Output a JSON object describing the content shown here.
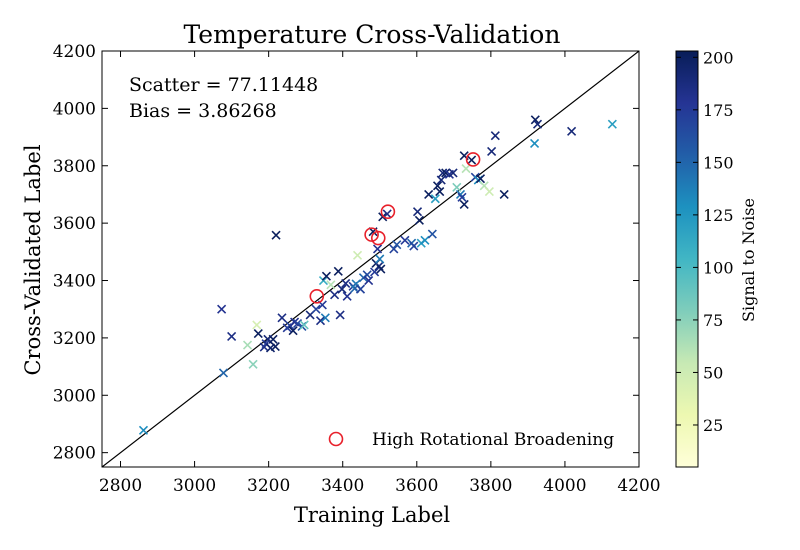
{
  "chart_data": {
    "type": "scatter",
    "title": "Temperature Cross-Validation",
    "xlabel": "Training Label",
    "ylabel": "Cross-Validated Label",
    "xlim": [
      2750,
      4200
    ],
    "ylim": [
      2750,
      4200
    ],
    "xticks": [
      2800,
      3000,
      3200,
      3400,
      3600,
      3800,
      4000,
      4200
    ],
    "yticks": [
      2800,
      3000,
      3200,
      3400,
      3600,
      3800,
      4000,
      4200
    ],
    "grid": false,
    "annotations": [
      "Scatter = 77.11448",
      "Bias = 3.86268"
    ],
    "reference_line": "y = x",
    "legend": {
      "position": "bottom-right",
      "entries": [
        "High Rotational Broadening"
      ]
    },
    "colorbar": {
      "label": "Signal to Noise",
      "range": [
        5,
        203
      ],
      "ticks": [
        25,
        50,
        75,
        100,
        125,
        150,
        175,
        200
      ],
      "colormap": "YlGnBu"
    },
    "colors": {
      "highlight": "#e8202a",
      "line": "#000000"
    },
    "points": [
      [
        2862,
        2878,
        130
      ],
      [
        3073,
        3300,
        180
      ],
      [
        3078,
        3078,
        150
      ],
      [
        3100,
        3205,
        185
      ],
      [
        3143,
        3175,
        65
      ],
      [
        3158,
        3108,
        75
      ],
      [
        3168,
        3245,
        45
      ],
      [
        3172,
        3215,
        200
      ],
      [
        3188,
        3168,
        185
      ],
      [
        3193,
        3180,
        175
      ],
      [
        3198,
        3195,
        190
      ],
      [
        3205,
        3165,
        195
      ],
      [
        3212,
        3195,
        200
      ],
      [
        3218,
        3170,
        200
      ],
      [
        3220,
        3558,
        200
      ],
      [
        3236,
        3270,
        185
      ],
      [
        3250,
        3235,
        175
      ],
      [
        3258,
        3242,
        170
      ],
      [
        3266,
        3225,
        200
      ],
      [
        3270,
        3255,
        180
      ],
      [
        3278,
        3250,
        170
      ],
      [
        3290,
        3240,
        160
      ],
      [
        3296,
        3245,
        90
      ],
      [
        3312,
        3280,
        190
      ],
      [
        3328,
        3300,
        170
      ],
      [
        3340,
        3260,
        185
      ],
      [
        3345,
        3315,
        175
      ],
      [
        3348,
        3400,
        110
      ],
      [
        3353,
        3270,
        140
      ],
      [
        3356,
        3415,
        200
      ],
      [
        3368,
        3385,
        60
      ],
      [
        3378,
        3350,
        185
      ],
      [
        3388,
        3432,
        200
      ],
      [
        3393,
        3280,
        185
      ],
      [
        3398,
        3370,
        190
      ],
      [
        3408,
        3390,
        185
      ],
      [
        3412,
        3345,
        180
      ],
      [
        3428,
        3380,
        175
      ],
      [
        3432,
        3372,
        150
      ],
      [
        3436,
        3388,
        140
      ],
      [
        3440,
        3488,
        50
      ],
      [
        3448,
        3370,
        170
      ],
      [
        3456,
        3410,
        150
      ],
      [
        3466,
        3420,
        165
      ],
      [
        3470,
        3400,
        180
      ],
      [
        3482,
        3570,
        200
      ],
      [
        3486,
        3430,
        175
      ],
      [
        3490,
        3460,
        200
      ],
      [
        3494,
        3510,
        180
      ],
      [
        3498,
        3450,
        190
      ],
      [
        3500,
        3475,
        140
      ],
      [
        3503,
        3440,
        200
      ],
      [
        3508,
        3622,
        200
      ],
      [
        3520,
        3632,
        185
      ],
      [
        3538,
        3510,
        170
      ],
      [
        3546,
        3525,
        160
      ],
      [
        3568,
        3540,
        175
      ],
      [
        3586,
        3530,
        150
      ],
      [
        3592,
        3520,
        170
      ],
      [
        3602,
        3640,
        190
      ],
      [
        3607,
        3610,
        200
      ],
      [
        3612,
        3530,
        120
      ],
      [
        3622,
        3540,
        130
      ],
      [
        3632,
        3700,
        200
      ],
      [
        3642,
        3562,
        160
      ],
      [
        3650,
        3685,
        120
      ],
      [
        3656,
        3730,
        200
      ],
      [
        3662,
        3710,
        200
      ],
      [
        3666,
        3750,
        190
      ],
      [
        3670,
        3775,
        190
      ],
      [
        3678,
        3775,
        200
      ],
      [
        3688,
        3770,
        180
      ],
      [
        3698,
        3775,
        190
      ],
      [
        3708,
        3725,
        80
      ],
      [
        3718,
        3700,
        140
      ],
      [
        3722,
        3690,
        175
      ],
      [
        3728,
        3665,
        200
      ],
      [
        3728,
        3835,
        200
      ],
      [
        3733,
        3790,
        60
      ],
      [
        3748,
        3820,
        200
      ],
      [
        3758,
        3760,
        170
      ],
      [
        3766,
        3750,
        130
      ],
      [
        3772,
        3755,
        200
      ],
      [
        3782,
        3730,
        60
      ],
      [
        3796,
        3710,
        50
      ],
      [
        3802,
        3850,
        190
      ],
      [
        3812,
        3905,
        190
      ],
      [
        3836,
        3700,
        200
      ],
      [
        3918,
        3878,
        130
      ],
      [
        3920,
        3960,
        200
      ],
      [
        3926,
        3945,
        190
      ],
      [
        4018,
        3920,
        190
      ],
      [
        4128,
        3945,
        120
      ]
    ],
    "high_rotational_broadening": [
      [
        3330,
        3345
      ],
      [
        3478,
        3560
      ],
      [
        3496,
        3548
      ],
      [
        3522,
        3640
      ],
      [
        3752,
        3822
      ]
    ]
  }
}
